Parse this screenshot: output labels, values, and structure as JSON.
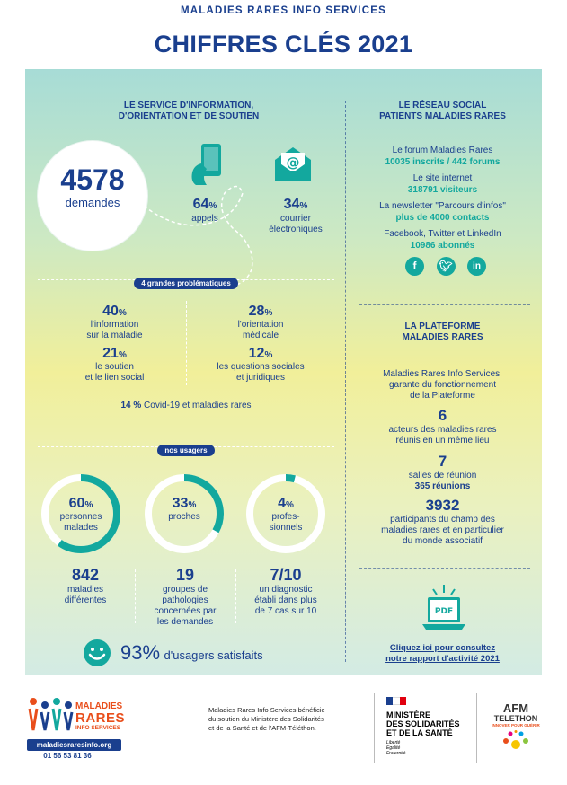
{
  "header": {
    "org": "MALADIES RARES INFO SERVICES",
    "title": "CHIFFRES CLÉS 2021"
  },
  "service": {
    "heading_line1": "LE SERVICE D'INFORMATION,",
    "heading_line2": "D'ORIENTATION ET DE SOUTIEN",
    "total_value": "4578",
    "total_label": "demandes",
    "calls_pct": "64",
    "calls_label": "appels",
    "mail_pct": "34",
    "mail_label1": "courrier",
    "mail_label2": "électroniques",
    "percent_sign": "%"
  },
  "problems": {
    "pill": "4 grandes problématiques",
    "p1_pct": "40",
    "p1_l1": "l'information",
    "p1_l2": "sur la maladie",
    "p2_pct": "28",
    "p2_l1": "l'orientation",
    "p2_l2": "médicale",
    "p3_pct": "21",
    "p3_l1": "le soutien",
    "p3_l2": "et le lien social",
    "p4_pct": "12",
    "p4_l1": "les questions sociales",
    "p4_l2": "et juridiques",
    "covid_pct": "14 %",
    "covid_label": "Covid-19 et maladies rares"
  },
  "users": {
    "pill": "nos usagers",
    "u1_pct": "60",
    "u1_l1": "personnes",
    "u1_l2": "malades",
    "u1_ratio": 0.6,
    "u2_pct": "33",
    "u2_l1": "proches",
    "u2_ratio": 0.33,
    "u3_pct": "4",
    "u3_l1": "profes-",
    "u3_l2": "sionnels",
    "u3_ratio": 0.04,
    "s1_value": "842",
    "s1_l1": "maladies",
    "s1_l2": "différentes",
    "s2_value": "19",
    "s2_l1": "groupes de",
    "s2_l2": "pathologies",
    "s2_l3": "concernées par",
    "s2_l4": "les demandes",
    "s3_value": "7/10",
    "s3_l1": "un diagnostic",
    "s3_l2": "établi dans plus",
    "s3_l3": "de 7 cas sur 10",
    "satisfied_value": "93%",
    "satisfied_label": "d'usagers satisfaits"
  },
  "network": {
    "heading_line1": "LE RÉSEAU SOCIAL",
    "heading_line2": "PATIENTS MALADIES RARES",
    "forum_label": "Le forum Maladies Rares",
    "forum_stats": "10035 inscrits / 442 forums",
    "site_label": "Le site internet",
    "site_stats": "318791 visiteurs",
    "news_label": "La newsletter \"Parcours d'infos\"",
    "news_stats": "plus de 4000 contacts",
    "social_label": "Facebook, Twitter et LinkedIn",
    "social_stats": "10986 abonnés",
    "icons": [
      "facebook-icon",
      "twitter-icon",
      "linkedin-icon"
    ]
  },
  "platform": {
    "heading_line1": "LA PLATEFORME",
    "heading_line2": "MALADIES RARES",
    "intro1": "Maladies Rares Info Services,",
    "intro2": "garante du fonctionnement",
    "intro3": "de la Plateforme",
    "a_value": "6",
    "a_l1": "acteurs des maladies rares",
    "a_l2": "réunis en un même lieu",
    "b_value": "7",
    "b_l1": "salles de réunion",
    "b_l2": "365 réunions",
    "c_value": "3932",
    "c_l1": "participants du champ des",
    "c_l2": "maladies rares et en particulier",
    "c_l3": "du monde associatif",
    "pdf_label": "PDF",
    "link1": "Cliquez ici pour consultez",
    "link2": "notre rapport d'activité 2021"
  },
  "footer": {
    "logo_line1": "MALADIES",
    "logo_line2": "RARES",
    "logo_line3": "INFO SERVICES",
    "logo_url": "maladiesraresinfo.org",
    "logo_phone": "01 56 53 81 36",
    "support1": "Maladies Rares Info Services bénéficie",
    "support2": "du soutien du Ministère des Solidarités",
    "support3": "et de la Santé et de l'AFM-Téléthon.",
    "ministry1": "MINISTÈRE",
    "ministry2": "DES SOLIDARITÉS",
    "ministry3": "ET DE LA SANTÉ",
    "motto1": "Liberté",
    "motto2": "Égalité",
    "motto3": "Fraternité",
    "afm1": "AFM",
    "afm2": "TELETHON",
    "afm3": "INNOVER POUR GUÉRIR"
  },
  "colors": {
    "navy": "#1a3f8e",
    "teal": "#13a89e",
    "orange": "#e94e1b"
  }
}
